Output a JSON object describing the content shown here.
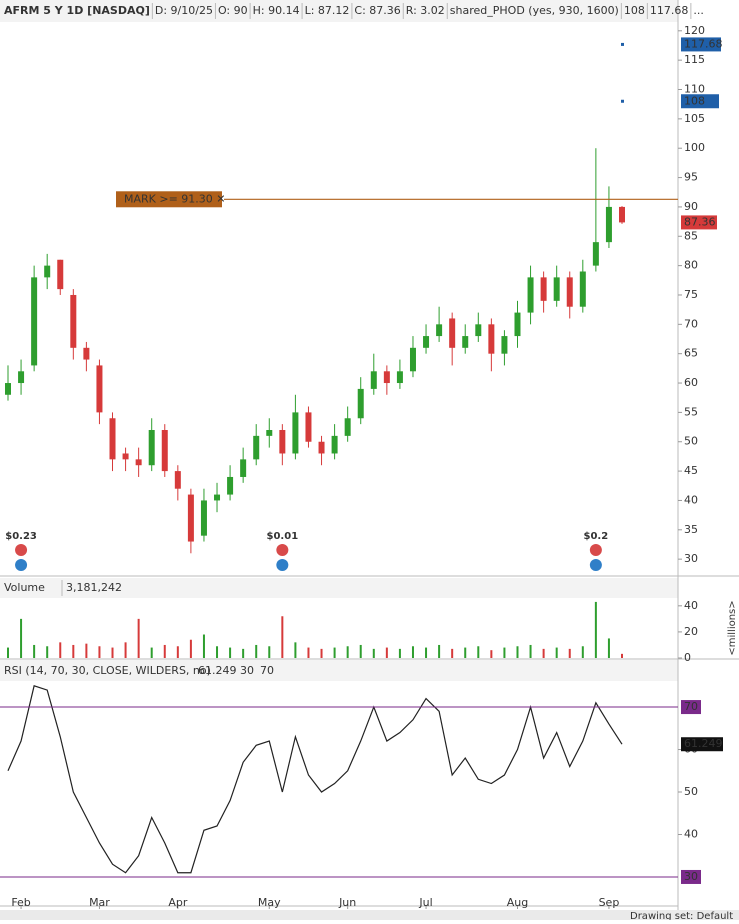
{
  "header": {
    "items": [
      "AFRM 5 Y 1D [NASDAQ]",
      "D: 9/10/25",
      "O: 90",
      "H: 90.14",
      "L: 87.12",
      "C: 87.36",
      "R: 3.02",
      "shared_PHOD (yes, 930, 1600)",
      "108",
      "117.68",
      "..."
    ],
    "footer": "Drawing set: Default"
  },
  "chart_data": [
    {
      "type": "candlestick",
      "categories": [
        null,
        "Feb",
        null,
        null,
        null,
        null,
        null,
        "Mar",
        null,
        null,
        null,
        null,
        null,
        "Apr",
        null,
        null,
        null,
        null,
        null,
        null,
        "May",
        null,
        null,
        null,
        null,
        null,
        "Jun",
        null,
        null,
        null,
        null,
        null,
        "Jul",
        null,
        null,
        null,
        null,
        null,
        null,
        "Aug",
        null,
        null,
        null,
        null,
        null,
        null,
        "Sep",
        null
      ],
      "open": [
        58,
        60,
        63,
        78,
        81,
        75,
        66,
        63,
        54,
        48,
        47,
        46,
        52,
        45,
        41,
        34,
        40,
        41,
        44,
        47,
        51,
        52,
        48,
        55,
        50,
        48,
        51,
        54,
        59,
        62,
        60,
        62,
        66,
        68,
        71,
        66,
        68,
        70,
        65,
        68,
        72,
        78,
        74,
        78,
        73,
        80,
        84,
        90
      ],
      "high": [
        63,
        64,
        80,
        82,
        81,
        76,
        67,
        64,
        55,
        49,
        49,
        54,
        53,
        46,
        42,
        42,
        43,
        46,
        49,
        53,
        54,
        53,
        58,
        56,
        51,
        53,
        56,
        61,
        65,
        63,
        64,
        68,
        70,
        73,
        72,
        70,
        72,
        71,
        69,
        74,
        80,
        79,
        80,
        79,
        81,
        100,
        93.5,
        90.14
      ],
      "low": [
        57,
        58,
        62,
        76,
        75,
        64,
        62,
        53,
        45,
        45,
        44,
        45,
        44,
        40,
        31,
        33,
        38,
        40,
        43,
        46,
        49,
        46,
        47,
        49,
        46,
        47,
        50,
        53,
        58,
        58,
        59,
        61,
        65,
        67,
        63,
        65,
        67,
        62,
        63,
        66,
        70,
        72,
        73,
        71,
        72,
        79,
        83,
        87.12
      ],
      "close": [
        60,
        62,
        78,
        80,
        76,
        66,
        64,
        55,
        47,
        47,
        46,
        52,
        45,
        42,
        33,
        40,
        41,
        44,
        47,
        51,
        52,
        48,
        55,
        50,
        48,
        51,
        54,
        59,
        62,
        60,
        62,
        66,
        68,
        70,
        66,
        68,
        70,
        65,
        68,
        72,
        78,
        74,
        78,
        73,
        79,
        84,
        90,
        87.36
      ],
      "up_color": "#2e9e2e",
      "down_color": "#d63a3a",
      "ylim": [
        27.3,
        121.5
      ],
      "yticks": [
        30,
        35,
        40,
        45,
        50,
        55,
        60,
        65,
        70,
        75,
        80,
        85,
        90,
        95,
        100,
        105,
        110,
        115,
        120
      ],
      "alert": {
        "label": "MARK >= 91.30 ✕",
        "value": 91.3,
        "color": "#b0601a"
      },
      "study_levels": [
        108,
        117.68
      ],
      "dividends": [
        {
          "label": "$0.23",
          "index": 1
        },
        {
          "label": "$0.01",
          "index": 21
        },
        {
          "label": "$0.2",
          "index": 45
        }
      ]
    },
    {
      "type": "bar",
      "title": "Volume",
      "current_label": "3,181,242",
      "axis_label": "<millions>",
      "values": [
        8,
        30,
        10,
        9,
        12,
        10,
        11,
        9,
        8,
        12,
        30,
        8,
        10,
        9,
        14,
        18,
        9,
        8,
        7,
        10,
        9,
        32,
        12,
        8,
        7,
        8,
        9,
        10,
        7,
        8,
        7,
        9,
        8,
        10,
        7,
        8,
        9,
        6,
        8,
        9,
        10,
        7,
        8,
        7,
        9,
        43,
        15,
        3.181242
      ],
      "ylim": [
        0,
        46
      ],
      "yticks": [
        0,
        20,
        40
      ]
    },
    {
      "type": "line",
      "title": "RSI (14, 70, 30, CLOSE, WILDERS, no)",
      "color": "#222222",
      "level_color": "#7a2a8a",
      "values": [
        55,
        62,
        75,
        74,
        63,
        50,
        44,
        38,
        33,
        31,
        35,
        44,
        38,
        31,
        31,
        41,
        42,
        48,
        57,
        61,
        62,
        50,
        63,
        54,
        50,
        52,
        55,
        62,
        70,
        62,
        64,
        67,
        72,
        69,
        54,
        58,
        53,
        52,
        54,
        60,
        70,
        58,
        64,
        56,
        62,
        71,
        66,
        61.249
      ],
      "levels": [
        30,
        70
      ],
      "ylim": [
        23.4,
        75.9
      ],
      "yticks": [
        40,
        50,
        60
      ]
    }
  ]
}
